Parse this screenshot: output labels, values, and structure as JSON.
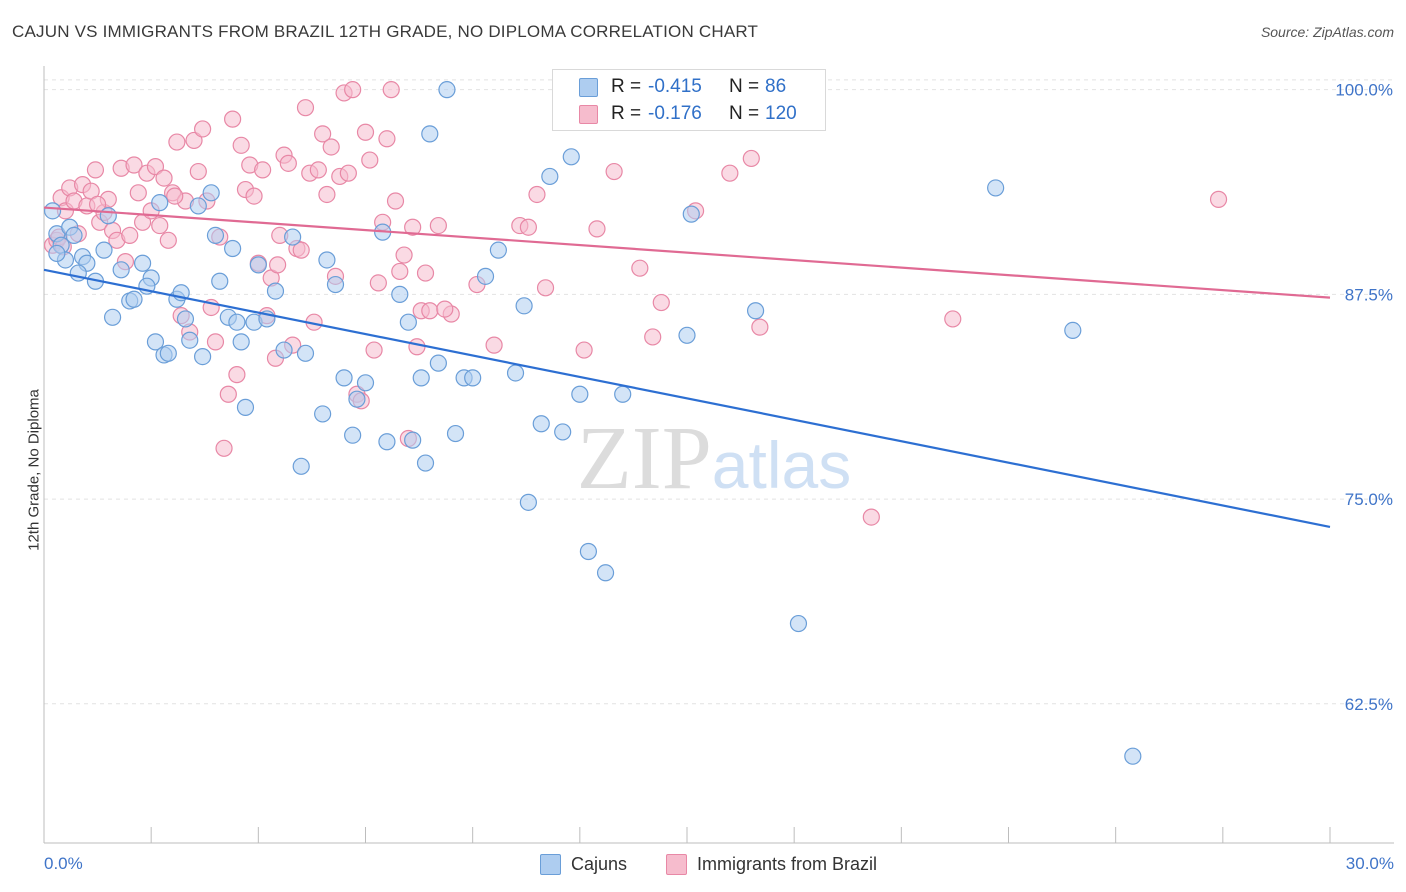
{
  "header": {
    "title": "CAJUN VS IMMIGRANTS FROM BRAZIL 12TH GRADE, NO DIPLOMA CORRELATION CHART",
    "source": "Source: ZipAtlas.com"
  },
  "watermark": "ZIPatlas",
  "colors": {
    "cajun_fill": "#aecdf0",
    "cajun_stroke": "#6a9ed8",
    "cajun_line": "#2d6fd2",
    "brazil_fill": "#f6bccd",
    "brazil_stroke": "#e888a6",
    "brazil_line": "#e06a93",
    "tick_label": "#3f74c8",
    "grid": "#e2e2e2"
  },
  "legend_top": {
    "rows": [
      {
        "r_label": "R =",
        "r_value": "-0.415",
        "n_label": "N =",
        "n_value": "86"
      },
      {
        "r_label": "R =",
        "r_value": "-0.176",
        "n_label": "N =",
        "n_value": "120"
      }
    ]
  },
  "legend_bottom": {
    "items": [
      {
        "label": "Cajuns"
      },
      {
        "label": "Immigrants from Brazil"
      }
    ]
  },
  "chart_data": {
    "type": "scatter",
    "title": "CAJUN VS IMMIGRANTS FROM BRAZIL 12TH GRADE, NO DIPLOMA CORRELATION CHART",
    "xlabel": "",
    "ylabel": "12th Grade, No Diploma",
    "xlim": [
      0,
      30
    ],
    "ylim": [
      54.0,
      101.2
    ],
    "x_tick_labels": [
      "0.0%",
      "30.0%"
    ],
    "y_ticks": [
      62.5,
      75.0,
      87.5,
      100.0
    ],
    "y_tick_labels": [
      "62.5%",
      "75.0%",
      "87.5%",
      "100.0%"
    ],
    "grid": true,
    "legend_position": "bottom",
    "series": [
      {
        "name": "Cajuns",
        "trend": {
          "x": [
            0,
            30
          ],
          "y": [
            89.0,
            73.3
          ]
        },
        "points": [
          [
            0.2,
            92.6
          ],
          [
            0.3,
            91.2
          ],
          [
            0.4,
            90.5
          ],
          [
            0.5,
            89.6
          ],
          [
            0.6,
            91.6
          ],
          [
            0.7,
            91.1
          ],
          [
            0.9,
            89.8
          ],
          [
            1.0,
            89.4
          ],
          [
            1.2,
            88.3
          ],
          [
            1.5,
            92.3
          ],
          [
            1.6,
            86.1
          ],
          [
            1.8,
            89.0
          ],
          [
            2.0,
            87.1
          ],
          [
            2.1,
            87.2
          ],
          [
            2.3,
            89.4
          ],
          [
            2.5,
            88.5
          ],
          [
            2.6,
            84.6
          ],
          [
            2.7,
            93.1
          ],
          [
            2.8,
            83.8
          ],
          [
            2.9,
            83.9
          ],
          [
            3.1,
            87.2
          ],
          [
            3.2,
            87.6
          ],
          [
            3.3,
            86.0
          ],
          [
            3.4,
            84.7
          ],
          [
            3.6,
            92.9
          ],
          [
            3.7,
            83.7
          ],
          [
            3.9,
            93.7
          ],
          [
            4.0,
            91.1
          ],
          [
            4.1,
            88.3
          ],
          [
            4.3,
            86.1
          ],
          [
            4.5,
            85.8
          ],
          [
            4.6,
            84.6
          ],
          [
            4.7,
            80.6
          ],
          [
            4.9,
            85.8
          ],
          [
            5.0,
            89.3
          ],
          [
            5.2,
            86.0
          ],
          [
            5.4,
            87.7
          ],
          [
            5.6,
            84.1
          ],
          [
            5.8,
            91.0
          ],
          [
            6.0,
            77.0
          ],
          [
            6.1,
            83.9
          ],
          [
            6.5,
            80.2
          ],
          [
            6.6,
            89.6
          ],
          [
            6.8,
            88.1
          ],
          [
            7.0,
            82.4
          ],
          [
            7.2,
            78.9
          ],
          [
            7.3,
            81.1
          ],
          [
            7.5,
            82.1
          ],
          [
            7.9,
            91.3
          ],
          [
            8.0,
            78.5
          ],
          [
            8.3,
            87.5
          ],
          [
            8.5,
            85.8
          ],
          [
            8.6,
            78.6
          ],
          [
            8.8,
            82.4
          ],
          [
            8.9,
            77.2
          ],
          [
            9.0,
            97.3
          ],
          [
            9.2,
            83.3
          ],
          [
            9.4,
            100.0
          ],
          [
            9.6,
            79.0
          ],
          [
            9.8,
            82.4
          ],
          [
            10.0,
            82.4
          ],
          [
            10.3,
            88.6
          ],
          [
            10.6,
            90.2
          ],
          [
            11.0,
            82.7
          ],
          [
            11.2,
            86.8
          ],
          [
            11.3,
            74.8
          ],
          [
            11.6,
            79.6
          ],
          [
            11.8,
            94.7
          ],
          [
            12.1,
            79.1
          ],
          [
            12.3,
            95.9
          ],
          [
            12.5,
            81.4
          ],
          [
            12.7,
            71.8
          ],
          [
            13.1,
            70.5
          ],
          [
            13.5,
            81.4
          ],
          [
            15.0,
            85.0
          ],
          [
            15.1,
            92.4
          ],
          [
            16.6,
            86.5
          ],
          [
            17.6,
            67.4
          ],
          [
            22.2,
            94.0
          ],
          [
            24.0,
            85.3
          ],
          [
            25.4,
            59.3
          ],
          [
            0.3,
            90.0
          ],
          [
            0.8,
            88.8
          ],
          [
            1.4,
            90.2
          ],
          [
            2.4,
            88.0
          ],
          [
            4.4,
            90.3
          ]
        ]
      },
      {
        "name": "Immigrants from Brazil",
        "trend": {
          "x": [
            0,
            30
          ],
          "y": [
            92.8,
            87.3
          ]
        },
        "points": [
          [
            0.2,
            90.5
          ],
          [
            0.3,
            90.8
          ],
          [
            0.4,
            93.4
          ],
          [
            0.5,
            92.6
          ],
          [
            0.6,
            94.0
          ],
          [
            0.7,
            93.2
          ],
          [
            0.8,
            91.2
          ],
          [
            0.9,
            94.2
          ],
          [
            1.0,
            92.9
          ],
          [
            1.1,
            93.8
          ],
          [
            1.2,
            95.1
          ],
          [
            1.3,
            91.9
          ],
          [
            1.4,
            92.5
          ],
          [
            1.5,
            93.3
          ],
          [
            1.6,
            91.4
          ],
          [
            1.7,
            90.8
          ],
          [
            1.8,
            95.2
          ],
          [
            1.9,
            89.5
          ],
          [
            2.0,
            91.1
          ],
          [
            2.1,
            95.4
          ],
          [
            2.2,
            93.7
          ],
          [
            2.3,
            91.9
          ],
          [
            2.4,
            94.9
          ],
          [
            2.5,
            92.6
          ],
          [
            2.6,
            95.3
          ],
          [
            2.7,
            91.7
          ],
          [
            2.8,
            94.6
          ],
          [
            2.9,
            90.8
          ],
          [
            3.0,
            93.7
          ],
          [
            3.1,
            96.8
          ],
          [
            3.2,
            86.2
          ],
          [
            3.3,
            93.2
          ],
          [
            3.4,
            85.2
          ],
          [
            3.5,
            96.9
          ],
          [
            3.6,
            95.0
          ],
          [
            3.7,
            97.6
          ],
          [
            3.8,
            93.2
          ],
          [
            3.9,
            86.7
          ],
          [
            4.0,
            84.6
          ],
          [
            4.1,
            91.0
          ],
          [
            4.2,
            78.1
          ],
          [
            4.3,
            81.4
          ],
          [
            4.4,
            98.2
          ],
          [
            4.5,
            82.6
          ],
          [
            4.6,
            96.6
          ],
          [
            4.7,
            93.9
          ],
          [
            4.8,
            95.4
          ],
          [
            4.9,
            93.5
          ],
          [
            5.0,
            89.4
          ],
          [
            5.1,
            95.1
          ],
          [
            5.2,
            86.2
          ],
          [
            5.3,
            88.5
          ],
          [
            5.4,
            83.6
          ],
          [
            5.5,
            91.1
          ],
          [
            5.6,
            96.0
          ],
          [
            5.7,
            95.5
          ],
          [
            5.8,
            84.4
          ],
          [
            5.9,
            90.3
          ],
          [
            6.0,
            90.2
          ],
          [
            6.1,
            98.9
          ],
          [
            6.2,
            94.9
          ],
          [
            6.3,
            85.8
          ],
          [
            6.4,
            95.1
          ],
          [
            6.5,
            97.3
          ],
          [
            6.6,
            93.6
          ],
          [
            6.7,
            96.5
          ],
          [
            6.8,
            88.6
          ],
          [
            6.9,
            94.7
          ],
          [
            7.0,
            99.8
          ],
          [
            7.1,
            94.9
          ],
          [
            7.2,
            100.0
          ],
          [
            7.3,
            81.4
          ],
          [
            7.4,
            81.0
          ],
          [
            7.5,
            97.4
          ],
          [
            7.6,
            95.7
          ],
          [
            7.7,
            84.1
          ],
          [
            7.8,
            88.2
          ],
          [
            7.9,
            91.9
          ],
          [
            8.0,
            97.0
          ],
          [
            8.1,
            100.0
          ],
          [
            8.2,
            93.2
          ],
          [
            8.3,
            88.9
          ],
          [
            8.4,
            89.9
          ],
          [
            8.5,
            78.7
          ],
          [
            8.6,
            91.6
          ],
          [
            8.7,
            84.3
          ],
          [
            8.8,
            86.5
          ],
          [
            8.9,
            88.8
          ],
          [
            9.0,
            86.5
          ],
          [
            9.2,
            91.7
          ],
          [
            9.5,
            86.3
          ],
          [
            10.1,
            88.1
          ],
          [
            10.5,
            84.4
          ],
          [
            11.1,
            91.7
          ],
          [
            11.3,
            91.6
          ],
          [
            11.5,
            93.6
          ],
          [
            11.7,
            87.9
          ],
          [
            12.2,
            98.4
          ],
          [
            12.4,
            100.0
          ],
          [
            12.6,
            84.1
          ],
          [
            12.9,
            91.5
          ],
          [
            13.3,
            95.0
          ],
          [
            13.9,
            89.1
          ],
          [
            14.2,
            84.9
          ],
          [
            14.4,
            87.0
          ],
          [
            15.2,
            92.6
          ],
          [
            16.0,
            94.9
          ],
          [
            16.7,
            85.5
          ],
          [
            17.3,
            100.0
          ],
          [
            19.3,
            73.9
          ],
          [
            21.2,
            86.0
          ],
          [
            27.4,
            93.3
          ],
          [
            16.5,
            95.8
          ],
          [
            0.35,
            91.0
          ],
          [
            0.45,
            90.4
          ],
          [
            1.25,
            93.0
          ],
          [
            3.05,
            93.5
          ],
          [
            5.45,
            89.3
          ],
          [
            9.35,
            86.6
          ],
          [
            13.55,
            99.2
          ]
        ]
      }
    ]
  }
}
